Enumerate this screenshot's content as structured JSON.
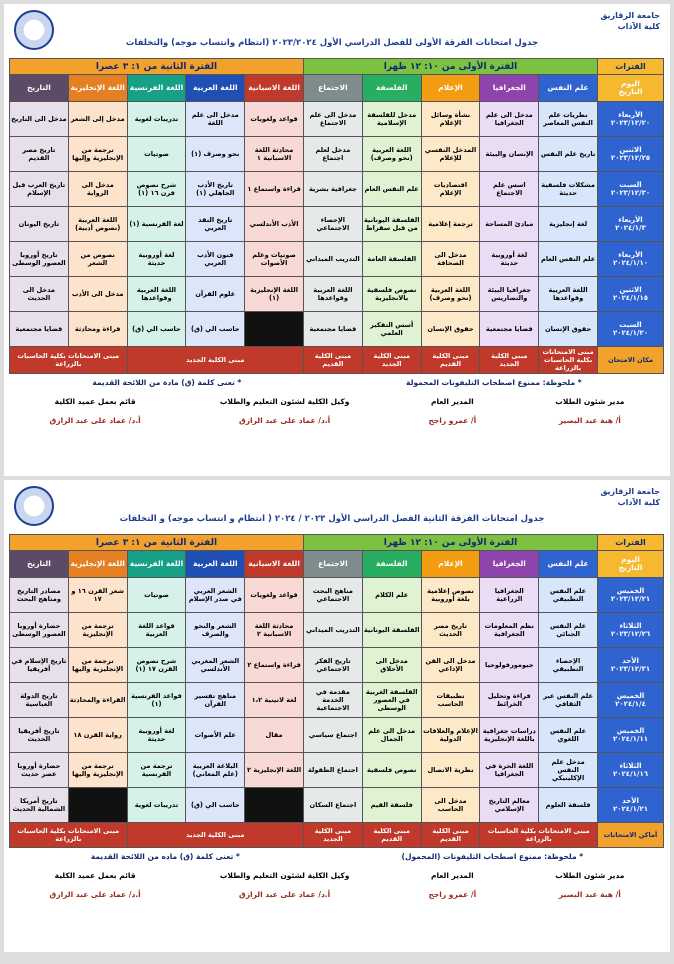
{
  "sheets": [
    {
      "university": "جامعة الزقازيق",
      "faculty": "كلية الآداب",
      "title": "جدول امتحانات الفرقة الأولى للفصل الدراسي الأول ٢٠٢٣/٢٠٢٤ (انتظام وانتساب موجه) والتخلفات",
      "periods_label": "الفترات",
      "day_label": "اليوم",
      "date_label": "التاريخ",
      "period1": "الفترة الأولى من ١٠: ١٢ ظهرا",
      "period2": "الفترة الثانية من ١: ٣ عصرا",
      "columns": [
        "علم النفس",
        "الجغرافيا",
        "الإعلام",
        "الفلسفة",
        "الاجتماع",
        "اللغة الاسبانية",
        "اللغة العربية",
        "اللغة الفرنسية",
        "اللغة الإنجليزية",
        "التاريخ"
      ],
      "rows": [
        {
          "day": "الأربعاء",
          "date": "٢٠٢٣/١٢/٢٠",
          "cells": [
            "نظريات علم النفس المعاصر",
            "مدخل الى علم الجغرافيا",
            "نشأة وسائل الإعلام",
            "مدخل للفلسفة الإسلامية",
            "مدخل الى علم الاجتماع",
            "قواعد ولغويات",
            "مدخل الى علم اللغة",
            "تدريبات لغوية",
            "مدخل إلى الشعر",
            "مدخل الى التاريخ"
          ]
        },
        {
          "day": "الاثنين",
          "date": "٢٠٢٣/١٢/٢٥",
          "cells": [
            "تاريخ علم النفس",
            "الإنسان والبيئة",
            "المدخل النفسي للإعلام",
            "اللغة العربية (نحو وصرف)",
            "مدخل لعلم اجتماع",
            "محادثة اللغة الاسبانية ١",
            "نحو وصرف (١)",
            "صوتيات",
            "ترجمة من الإنجليزية وإليها",
            "تاريخ مصر القديم"
          ]
        },
        {
          "day": "السبت",
          "date": "٢٠٢٣/١٢/٣٠",
          "cells": [
            "مشكلات فلسفية حديثة",
            "اسس علم الاجتماع",
            "اقتصاديات الإعلام",
            "علم النفس العام",
            "جغرافية بشرية",
            "قراءة واستماع ١",
            "تاريخ الأدب الجاهلي (١)",
            "شرح نصوص قرن ١٦ (١)",
            "مدخل الى الرواية",
            "تاريخ العرب قبل الإسلام"
          ]
        },
        {
          "day": "الأربعاء",
          "date": "٢٠٢٤/١/٣",
          "cells": [
            "لغة إنجليزية",
            "مبادئ المساحة",
            "ترجمة إعلامية",
            "الفلسفة اليونانية من قبل سقراط",
            "الإحصاء الاجتماعي",
            "الأدب الأندلسي",
            "تاريخ النقد العربي",
            "لغة الفرنسية (١)",
            "اللغة العربية (نصوص أدبية)",
            "تاريخ اليونان"
          ]
        },
        {
          "day": "الأربعاء",
          "date": "٢٠٢٤/١/١٠",
          "cells": [
            "علم النفس العام",
            "لغة أوروبية حديثة",
            "مدخل الى الصحافة",
            "الفلسفة العامة",
            "التدريب الميداني",
            "صوتيات وعلم الأصوات",
            "فنون الأدب العربي",
            "لغة أوروبية حديثة",
            "نصوص من الشعر",
            "تاريخ أوروبا العصور الوسطى"
          ]
        },
        {
          "day": "الاثنين",
          "date": "٢٠٢٤/١/١٥",
          "cells": [
            "اللغة العربية وقواعدها",
            "جغرافيا البيئة والتضاريس",
            "اللغة العربية (نحو وصرف)",
            "نصوص فلسفية بالانجليزية",
            "اللغة العربية وقواعدها",
            "اللغة الإنجليزية (١)",
            "علوم القرآن",
            "اللغة العربية وقواعدها",
            "مدخل الى الأدب",
            "مدخل الى الحديث"
          ]
        },
        {
          "day": "السبت",
          "date": "٢٠٢٤/١/٢٠",
          "cells": [
            "حقوق الإنسان",
            "قضايا مجتمعية",
            "حقوق الإنسان",
            "أسس التفكير العلمي",
            "قضايا مجتمعية",
            null,
            "حاسب الي (ق)",
            "حاسب الي (ق)",
            "قراءة ومحادثة",
            "قضايا مجتمعية"
          ]
        }
      ],
      "place_label": "مكان الامتحان",
      "places": [
        "مبنى الامتحانات بكلية الحاسبات بالزراعة",
        "مبنى الكلية الجديد",
        "مبنى الكلية القديم",
        "مبنى الكلية الجديد",
        "مبنى الكلية القديم",
        "مبنى الكلية الجديد",
        "مبنى الامتحانات بكلية الحاسبات بالزراعة"
      ],
      "notes": [
        "* ملحوظة: ممنوع اصطحاب التليفونات المحمولة",
        "* تعنى كلمة (ق) مادة من اللائحة القديمة"
      ],
      "signatures": [
        {
          "role": "مدير شئون الطلاب",
          "name": "أ/ هبة عبد البصير"
        },
        {
          "role": "المدير العام",
          "name": "أ/ عمرو راجح"
        },
        {
          "role": "وكيل الكلية لشئون التعليم والطلاب",
          "name": "أ.د/ عماد على عبد الرازق"
        },
        {
          "role": "قائم بعمل عميد الكلية",
          "name": "أ.د/ عماد على عبد الرازق"
        }
      ]
    },
    {
      "university": "جامعة الزقازيق",
      "faculty": "كلية الآداب",
      "title": "جدول امتحانات الفرقة الثانية الفصل الدراسي الأول ٢٠٢٣ / ٢٠٢٤ ( انتظام و انتساب موجه) و التخلفات",
      "periods_label": "الفترات",
      "day_label": "اليوم",
      "date_label": "التاريخ",
      "period1": "الفترة الأولى من ١٠: ١٢ ظهرا",
      "period2": "الفترة الثانية من ١: ٣ عصرا",
      "columns": [
        "علم النفس",
        "الجغرافيا",
        "الإعلام",
        "الفلسفة",
        "الاجتماع",
        "اللغة الاسبانية",
        "اللغة العربية",
        "اللغة الفرنسية",
        "اللغة الإنجليزية",
        "التاريخ"
      ],
      "rows": [
        {
          "day": "الخميس",
          "date": "٢٠٢٣/١٢/٢١",
          "cells": [
            "علم النفس التطبيقي",
            "الجغرافيا الزراعية",
            "نصوص إعلامية بلغة أوروبية",
            "علم الكلام",
            "مناهج البحث الاجتماعي",
            "قواعد ولغويات",
            "الشعر العربي في صدر الإسلام",
            "صوتيات",
            "شعر القرن ١٦ و ١٧",
            "مصادر التاريخ ومناهج البحث"
          ]
        },
        {
          "day": "الثلاثاء",
          "date": "٢٠٢٣/١٢/٢٦",
          "cells": [
            "علم النفس الجنائي",
            "نظم المعلومات الجغرافية",
            "تاريخ مصر الحديث",
            "الفلسفة اليونانية",
            "التدريب الميداني",
            "محادثة اللغة الاسبانية ٢",
            "الشعر والنحو والصرف",
            "قواعد اللغة العربية",
            "ترجمة من الإنجليزية",
            "حضارة أوروبا العصور الوسطى"
          ]
        },
        {
          "day": "الأحد",
          "date": "٢٠٢٣/١٢/٣١",
          "cells": [
            "الإحصاء التطبيقي",
            "جيومورفولوجيا",
            "مدخل الى الفن الإذاعي",
            "مدخل الى الأخلاق",
            "تاريخ الفكر الاجتماعي",
            "قراءة واستماع ٢",
            "الشعر المغربي الأندلسي",
            "شرح نصوص القرن ١٧ (١)",
            "ترجمة من الإنجليزية واليها",
            "تاريخ الإسلام في أفريقيا"
          ]
        },
        {
          "day": "الخميس",
          "date": "٢٠٢٤/١/٤",
          "cells": [
            "علم النفس عبر الثقافي",
            "قراءة وتحليل الخرائط",
            "تطبيقات الحاسب",
            "الفلسفة الغربية في العصور الوسطى",
            "مقدمة في الخدمة الاجتماعية",
            "لغة لاتينية ١،٢",
            "مناهج تفسير القرآن",
            "قواعد الفرنسية (١)",
            "القراءة والمحادثة",
            "تاريخ الدولة العباسية"
          ]
        },
        {
          "day": "الخميس",
          "date": "٢٠٢٤/١/١١",
          "cells": [
            "علم النفس اللغوي",
            "دراسات جغرافية باللغة الإنجليزية",
            "الإعلام والعلاقات الدولية",
            "مدخل الى علم الجمال",
            "اجتماع سياسي",
            "مقال",
            "علم الأصوات",
            "لغة أوروبية حديثة",
            "رواية القرن ١٨",
            "تاريخ أفريقيا الحديث"
          ]
        },
        {
          "day": "الثلاثاء",
          "date": "٢٠٢٤/١/١٦",
          "cells": [
            "مدخل علم النفس الإكلينيكي",
            "اللغة الحرة في الجغرافيا",
            "نظرية الاتصال",
            "نصوص فلسفية",
            "اجتماع الطفولة",
            "اللغة الإنجليزية ٢",
            "البلاغة العربية (علم المعاني)",
            "ترجمة من الفرنسية",
            "ترجمة من الإنجليزية واليها",
            "حضارة أوروبا عصر حديث"
          ]
        },
        {
          "day": "الأحد",
          "date": "٢٠٢٤/١/٢١",
          "cells": [
            "فلسفة العلوم",
            "معالم التاريخ الإسلامي",
            "مدخل الى الحاسب",
            "فلسفة القيم",
            "اجتماع السكان",
            null,
            "حاسب الي (ق)",
            "تدريبات لغوية",
            null,
            "تاريخ أمريكا الشمالية الحديث"
          ]
        }
      ],
      "place_label": "أماكن الامتحانات",
      "places": [
        "مبنى الامتحانات بكلية الحاسبات بالزراعة",
        "مبنى الكلية القديم",
        "مبنى الكلية القديم",
        "مبنى الكلية الجديد",
        "مبنى الكلية الجديد",
        "مبنى الامتحانات بكلية الحاسبات بالزراعة"
      ],
      "notes": [
        "* ملحوظة: ممنوع اصطحاب التليفونات (المحمول)",
        "* تعنى كلمة (ق) ماده من اللائحة القديمة"
      ],
      "signatures": [
        {
          "role": "مدير شئون الطلاب",
          "name": "أ/ هبة عبد البصير"
        },
        {
          "role": "المدير العام",
          "name": "أ/ عمرو راجح"
        },
        {
          "role": "وكيل الكلية لشئون التعليم والطلاب",
          "name": "أ.د/ عماد على عبد الرازق"
        },
        {
          "role": "قائم بعمل عميد الكلية",
          "name": "أ.د/ عماد على عبد الرازق"
        }
      ]
    }
  ]
}
